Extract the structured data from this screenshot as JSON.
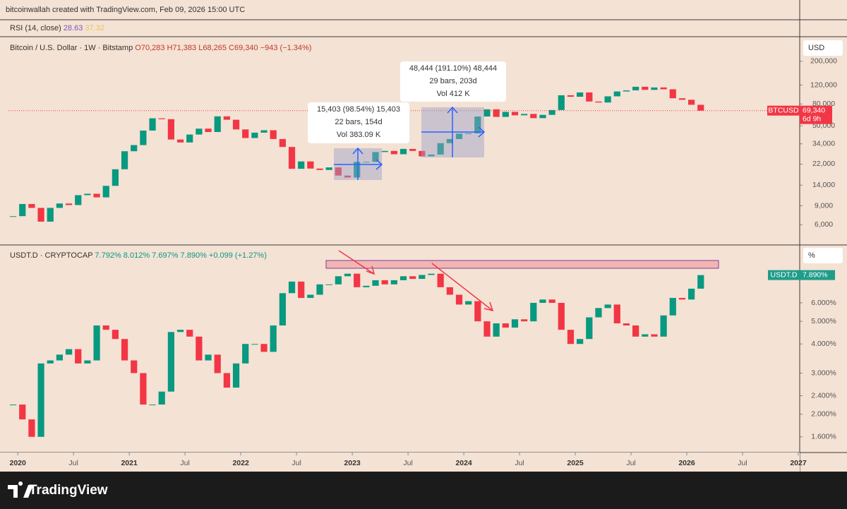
{
  "header": "bitcoinwallah created with TradingView.com, Feb 09, 2026 15:00 UTC",
  "rsi": {
    "title": "RSI (14, close)",
    "values": [
      28.63,
      37.32
    ]
  },
  "brand": "TradingView",
  "chart_data": [
    {
      "type": "candlestick",
      "title": "Bitcoin / U.S. Dollar · 1W · Bitstamp",
      "ohlc": [
        "O70,283",
        "H71,383",
        "L68,265",
        "C69,340"
      ],
      "change": "−943 (−1.34%)",
      "unit": "USD",
      "last_name": "BTCUSD",
      "last_value_label": "69,340",
      "countdown": "6d 9h",
      "colors": {
        "up": "#089981",
        "down": "#f23645"
      },
      "log_scale": true,
      "xlim": [
        "2019-12",
        "2027-01"
      ],
      "ylim": [
        4000,
        300000
      ],
      "yticks": [
        {
          "value": 6000,
          "label": "6,000"
        },
        {
          "value": 9000,
          "label": "9,000"
        },
        {
          "value": 14000,
          "label": "14,000"
        },
        {
          "value": 22000,
          "label": "22,000"
        },
        {
          "value": 34000,
          "label": "34,000"
        },
        {
          "value": 50000,
          "label": "50,000"
        },
        {
          "value": 80000,
          "label": "80,000"
        },
        {
          "value": 120000,
          "label": "120,000"
        },
        {
          "value": 200000,
          "label": "200,000"
        }
      ],
      "annotations": [
        {
          "lines": [
            "15,403 (98.54%) 15,403",
            "22 bars, 154d",
            "Vol 383.09 K"
          ]
        },
        {
          "lines": [
            "48,444 (191.10%) 48,444",
            "29 bars, 203d",
            "Vol 412 K"
          ]
        }
      ],
      "x": [
        "2019-12",
        "2020-01",
        "2020-02",
        "2020-03",
        "2020-04",
        "2020-05",
        "2020-06",
        "2020-07",
        "2020-08",
        "2020-09",
        "2020-10",
        "2020-11",
        "2020-12",
        "2021-01",
        "2021-02",
        "2021-03",
        "2021-04",
        "2021-05",
        "2021-06",
        "2021-07",
        "2021-08",
        "2021-09",
        "2021-10",
        "2021-11",
        "2021-12",
        "2022-01",
        "2022-02",
        "2022-03",
        "2022-04",
        "2022-05",
        "2022-06",
        "2022-07",
        "2022-08",
        "2022-09",
        "2022-10",
        "2022-11",
        "2022-12",
        "2023-01",
        "2023-02",
        "2023-03",
        "2023-04",
        "2023-05",
        "2023-06",
        "2023-07",
        "2023-08",
        "2023-09",
        "2023-10",
        "2023-11",
        "2023-12",
        "2024-01",
        "2024-02",
        "2024-03",
        "2024-04",
        "2024-05",
        "2024-06",
        "2024-07",
        "2024-08",
        "2024-09",
        "2024-10",
        "2024-11",
        "2024-12",
        "2025-01",
        "2025-02",
        "2025-03",
        "2025-04",
        "2025-05",
        "2025-06",
        "2025-07",
        "2025-08",
        "2025-09",
        "2025-10",
        "2025-11",
        "2025-12",
        "2026-01",
        "2026-02"
      ],
      "values": [
        7200,
        9350,
        8600,
        6400,
        8600,
        9450,
        9140,
        11300,
        11650,
        10780,
        13800,
        19700,
        29000,
        33100,
        45200,
        58800,
        57700,
        37300,
        35000,
        41500,
        47100,
        43800,
        61300,
        57000,
        46300,
        38500,
        43200,
        45500,
        37700,
        31800,
        19900,
        23300,
        20000,
        19400,
        20500,
        17200,
        16500,
        23100,
        23100,
        28500,
        29200,
        27200,
        30500,
        29200,
        26000,
        27000,
        34500,
        37700,
        42300,
        42600,
        61100,
        71300,
        60600,
        67500,
        62700,
        64600,
        59000,
        63300,
        70200,
        96400,
        93400,
        102400,
        84300,
        82500,
        94200,
        104600,
        107100,
        115700,
        108200,
        114000,
        109600,
        90400,
        87500,
        78600,
        69340
      ]
    },
    {
      "type": "candlestick",
      "title": "USDT.D · CRYPTOCAP",
      "ohlc": [
        "7.792%",
        "8.012%",
        "7.697%",
        "7.890%"
      ],
      "change": "+0.099 (+1.27%)",
      "unit": "%",
      "last_name": "USDT.D",
      "last_value_label": "7.890%",
      "colors": {
        "up": "#089981",
        "down": "#f23645"
      },
      "log_scale": true,
      "xlim": [
        "2019-12",
        "2027-01"
      ],
      "ylim": [
        1.38,
        10.4
      ],
      "yticks": [
        {
          "value": 1.6,
          "label": "1.600%"
        },
        {
          "value": 2,
          "label": "2.000%"
        },
        {
          "value": 2.4,
          "label": "2.400%"
        },
        {
          "value": 3,
          "label": "3.000%"
        },
        {
          "value": 4,
          "label": "4.000%"
        },
        {
          "value": 5,
          "label": "5.000%"
        },
        {
          "value": 6,
          "label": "6.000%"
        }
      ],
      "xticks": [
        {
          "value": "2020-01",
          "label": "2020"
        },
        {
          "value": "2020-07",
          "label": "Jul"
        },
        {
          "value": "2021-01",
          "label": "2021"
        },
        {
          "value": "2021-07",
          "label": "Jul"
        },
        {
          "value": "2022-01",
          "label": "2022"
        },
        {
          "value": "2022-07",
          "label": "Jul"
        },
        {
          "value": "2023-01",
          "label": "2023"
        },
        {
          "value": "2023-07",
          "label": "Jul"
        },
        {
          "value": "2024-01",
          "label": "2024"
        },
        {
          "value": "2024-07",
          "label": "Jul"
        },
        {
          "value": "2025-01",
          "label": "2025"
        },
        {
          "value": "2025-07",
          "label": "Jul"
        },
        {
          "value": "2026-01",
          "label": "2026"
        },
        {
          "value": "2026-07",
          "label": "Jul"
        },
        {
          "value": "2027-01",
          "label": "2027"
        }
      ],
      "x": [
        "2019-12",
        "2020-01",
        "2020-02",
        "2020-03",
        "2020-04",
        "2020-05",
        "2020-06",
        "2020-07",
        "2020-08",
        "2020-09",
        "2020-10",
        "2020-11",
        "2020-12",
        "2021-01",
        "2021-02",
        "2021-03",
        "2021-04",
        "2021-05",
        "2021-06",
        "2021-07",
        "2021-08",
        "2021-09",
        "2021-10",
        "2021-11",
        "2021-12",
        "2022-01",
        "2022-02",
        "2022-03",
        "2022-04",
        "2022-05",
        "2022-06",
        "2022-07",
        "2022-08",
        "2022-09",
        "2022-10",
        "2022-11",
        "2022-12",
        "2023-01",
        "2023-02",
        "2023-03",
        "2023-04",
        "2023-05",
        "2023-06",
        "2023-07",
        "2023-08",
        "2023-09",
        "2023-10",
        "2023-11",
        "2023-12",
        "2024-01",
        "2024-02",
        "2024-03",
        "2024-04",
        "2024-05",
        "2024-06",
        "2024-07",
        "2024-08",
        "2024-09",
        "2024-10",
        "2024-11",
        "2024-12",
        "2025-01",
        "2025-02",
        "2025-03",
        "2025-04",
        "2025-05",
        "2025-06",
        "2025-07",
        "2025-08",
        "2025-09",
        "2025-10",
        "2025-11",
        "2025-12",
        "2026-01",
        "2026-02"
      ],
      "values": [
        2.2,
        1.9,
        1.6,
        3.3,
        3.4,
        3.6,
        3.8,
        3.3,
        3.4,
        4.8,
        4.6,
        4.2,
        3.4,
        3.0,
        2.2,
        2.2,
        2.5,
        4.5,
        4.6,
        4.3,
        3.4,
        3.6,
        3.0,
        2.6,
        3.3,
        4.0,
        4.0,
        3.7,
        4.8,
        6.6,
        7.4,
        6.3,
        6.5,
        7.2,
        7.2,
        7.8,
        8.0,
        7.0,
        7.1,
        7.5,
        7.2,
        7.5,
        7.8,
        7.6,
        7.9,
        8.0,
        7.0,
        6.5,
        5.9,
        6.1,
        5.0,
        4.3,
        4.9,
        4.7,
        5.1,
        5.0,
        6.0,
        6.2,
        6.0,
        4.6,
        4.0,
        4.2,
        5.2,
        5.7,
        5.9,
        4.9,
        4.8,
        4.3,
        4.4,
        4.3,
        5.3,
        6.3,
        6.2,
        6.9,
        7.89
      ]
    }
  ]
}
